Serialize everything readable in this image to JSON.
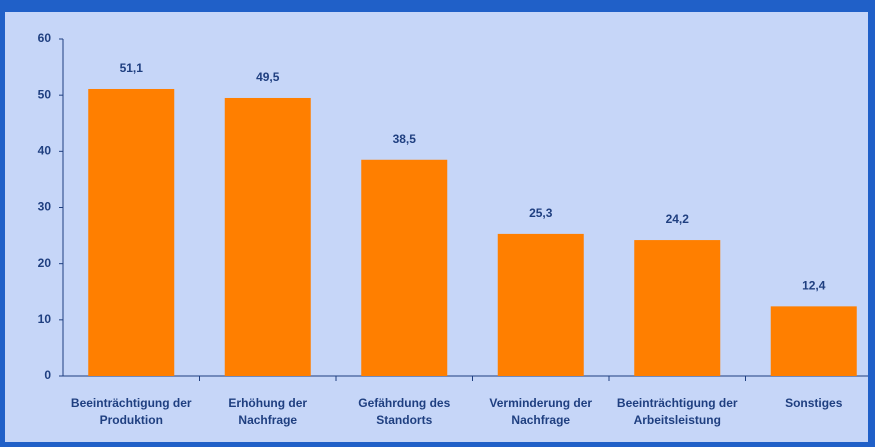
{
  "chart_data": {
    "type": "bar",
    "categories": [
      [
        "Beeinträchtigung der",
        "Produktion"
      ],
      [
        "Erhöhung der",
        "Nachfrage"
      ],
      [
        "Gefährdung des",
        "Standorts"
      ],
      [
        "Verminderung der",
        "Nachfrage"
      ],
      [
        "Beeinträchtigung der",
        "Arbeitsleistung"
      ],
      [
        "Sonstiges"
      ]
    ],
    "values": [
      51.1,
      49.5,
      38.5,
      25.3,
      24.2,
      12.4
    ],
    "value_labels": [
      "51,1",
      "49,5",
      "38,5",
      "25,3",
      "24,2",
      "12,4"
    ],
    "color": "#ff7f00",
    "ylim": [
      0,
      60
    ],
    "yticks": [
      0,
      10,
      20,
      30,
      40,
      50,
      60
    ],
    "grid": false
  }
}
